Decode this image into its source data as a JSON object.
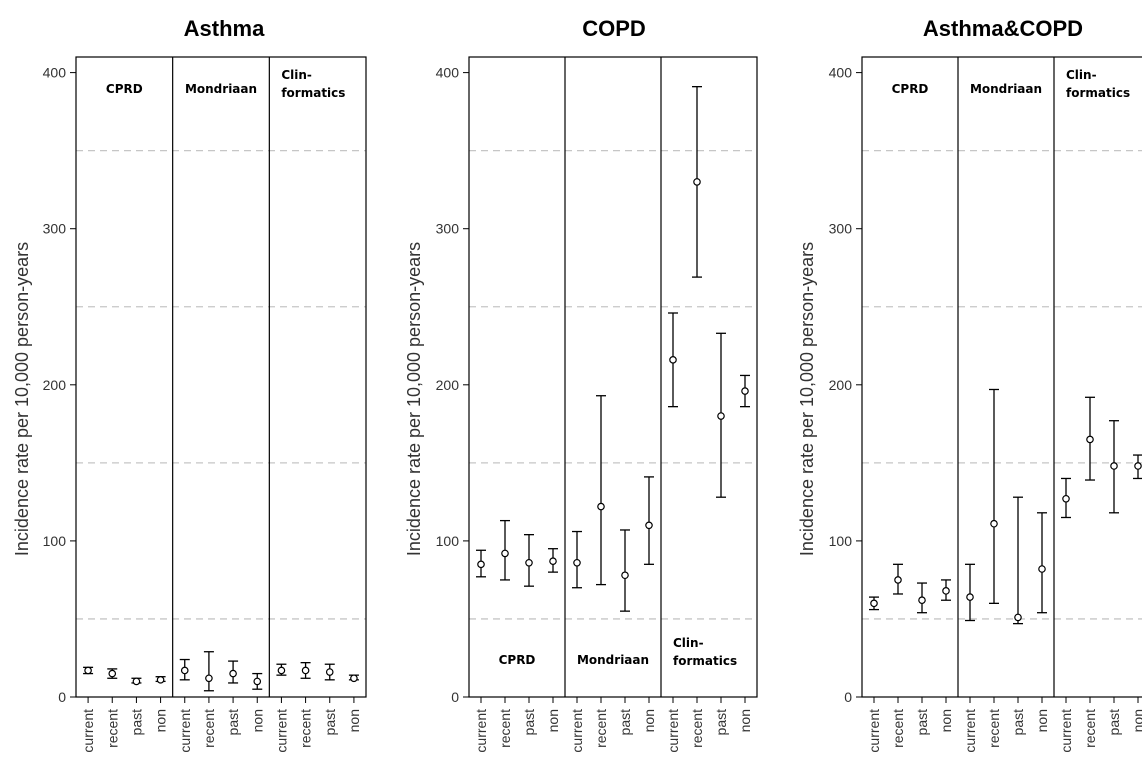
{
  "chart_data": [
    {
      "type": "scatter",
      "title": "Asthma",
      "ylabel": "Incidence rate per 10,000 person-years",
      "ylim": [
        0,
        410
      ],
      "y_ticks": [
        0,
        100,
        200,
        300,
        400
      ],
      "grid_y": [
        50,
        150,
        250,
        350
      ],
      "categories": [
        "current",
        "recent",
        "past",
        "non"
      ],
      "groups": [
        {
          "label": [
            "CPRD"
          ],
          "points": [
            {
              "x": "current",
              "y": 17,
              "lo": 15,
              "hi": 19
            },
            {
              "x": "recent",
              "y": 15,
              "lo": 12,
              "hi": 18
            },
            {
              "x": "past",
              "y": 10,
              "lo": 9,
              "hi": 12
            },
            {
              "x": "non",
              "y": 11,
              "lo": 10,
              "hi": 13
            }
          ]
        },
        {
          "label": [
            "Mondriaan"
          ],
          "points": [
            {
              "x": "current",
              "y": 17,
              "lo": 11,
              "hi": 24
            },
            {
              "x": "recent",
              "y": 12,
              "lo": 4,
              "hi": 29
            },
            {
              "x": "past",
              "y": 15,
              "lo": 9,
              "hi": 23
            },
            {
              "x": "non",
              "y": 10,
              "lo": 5,
              "hi": 15
            }
          ]
        },
        {
          "label": [
            "Clin-",
            "formatics"
          ],
          "points": [
            {
              "x": "current",
              "y": 17,
              "lo": 14,
              "hi": 21
            },
            {
              "x": "recent",
              "y": 17,
              "lo": 12,
              "hi": 22
            },
            {
              "x": "past",
              "y": 16,
              "lo": 11,
              "hi": 21
            },
            {
              "x": "non",
              "y": 12,
              "lo": 11,
              "hi": 14
            }
          ]
        }
      ]
    },
    {
      "type": "scatter",
      "title": "COPD",
      "ylabel": "Incidence rate per 10,000 person-years",
      "ylim": [
        0,
        410
      ],
      "y_ticks": [
        0,
        100,
        200,
        300,
        400
      ],
      "grid_y": [
        50,
        150,
        250,
        350
      ],
      "categories": [
        "current",
        "recent",
        "past",
        "non"
      ],
      "groups": [
        {
          "label": [
            "CPRD"
          ],
          "points": [
            {
              "x": "current",
              "y": 85,
              "lo": 77,
              "hi": 94
            },
            {
              "x": "recent",
              "y": 92,
              "lo": 75,
              "hi": 113
            },
            {
              "x": "past",
              "y": 86,
              "lo": 71,
              "hi": 104
            },
            {
              "x": "non",
              "y": 87,
              "lo": 80,
              "hi": 95
            }
          ]
        },
        {
          "label": [
            "Mondriaan"
          ],
          "points": [
            {
              "x": "current",
              "y": 86,
              "lo": 70,
              "hi": 106
            },
            {
              "x": "recent",
              "y": 122,
              "lo": 72,
              "hi": 193
            },
            {
              "x": "past",
              "y": 78,
              "lo": 55,
              "hi": 107
            },
            {
              "x": "non",
              "y": 110,
              "lo": 85,
              "hi": 141
            }
          ]
        },
        {
          "label": [
            "Clin-",
            "formatics"
          ],
          "points": [
            {
              "x": "current",
              "y": 216,
              "lo": 186,
              "hi": 246
            },
            {
              "x": "recent",
              "y": 330,
              "lo": 269,
              "hi": 391
            },
            {
              "x": "past",
              "y": 180,
              "lo": 128,
              "hi": 233
            },
            {
              "x": "non",
              "y": 196,
              "lo": 186,
              "hi": 206
            }
          ]
        }
      ]
    },
    {
      "type": "scatter",
      "title": "Asthma&COPD",
      "ylabel": "Incidence rate per 10,000 person-years",
      "ylim": [
        0,
        410
      ],
      "y_ticks": [
        0,
        100,
        200,
        300,
        400
      ],
      "grid_y": [
        50,
        150,
        250,
        350
      ],
      "categories": [
        "current",
        "recent",
        "past",
        "non"
      ],
      "groups": [
        {
          "label": [
            "CPRD"
          ],
          "points": [
            {
              "x": "current",
              "y": 60,
              "lo": 56,
              "hi": 64
            },
            {
              "x": "recent",
              "y": 75,
              "lo": 66,
              "hi": 85
            },
            {
              "x": "past",
              "y": 62,
              "lo": 54,
              "hi": 73
            },
            {
              "x": "non",
              "y": 68,
              "lo": 62,
              "hi": 75
            }
          ]
        },
        {
          "label": [
            "Mondriaan"
          ],
          "points": [
            {
              "x": "current",
              "y": 64,
              "lo": 49,
              "hi": 85
            },
            {
              "x": "recent",
              "y": 111,
              "lo": 60,
              "hi": 197
            },
            {
              "x": "past",
              "y": 51,
              "lo": 47,
              "hi": 128
            },
            {
              "x": "non",
              "y": 82,
              "lo": 54,
              "hi": 118
            }
          ]
        },
        {
          "label": [
            "Clin-",
            "formatics"
          ],
          "points": [
            {
              "x": "current",
              "y": 127,
              "lo": 115,
              "hi": 140
            },
            {
              "x": "recent",
              "y": 165,
              "lo": 139,
              "hi": 192
            },
            {
              "x": "past",
              "y": 148,
              "lo": 118,
              "hi": 177
            },
            {
              "x": "non",
              "y": 148,
              "lo": 140,
              "hi": 155
            }
          ]
        }
      ]
    }
  ]
}
